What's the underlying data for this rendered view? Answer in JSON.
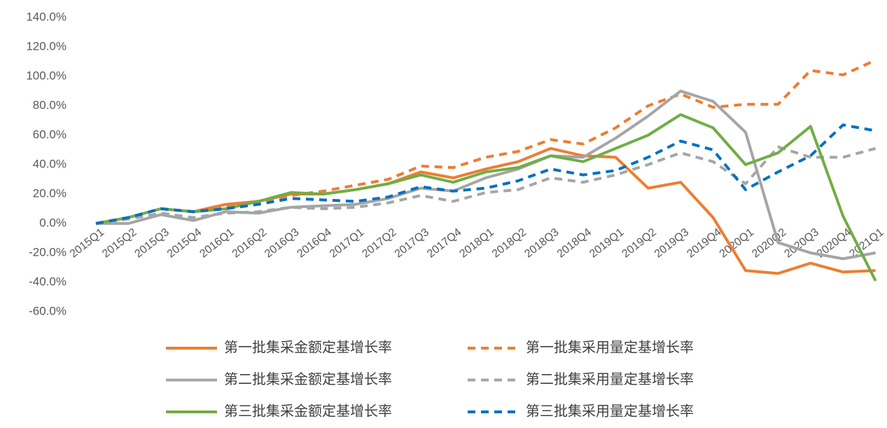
{
  "chart_data": {
    "type": "line",
    "categories": [
      "2015Q1",
      "2015Q2",
      "2015Q3",
      "2015Q4",
      "2016Q1",
      "2016Q2",
      "2016Q3",
      "2016Q4",
      "2017Q1",
      "2017Q2",
      "2017Q3",
      "2017Q4",
      "2018Q1",
      "2018Q2",
      "2018Q3",
      "2018Q4",
      "2019Q1",
      "2019Q2",
      "2019Q3",
      "2019Q4",
      "2020Q1",
      "2020Q2",
      "2020Q3",
      "2020Q4",
      "2021Q1"
    ],
    "ylim": [
      -60,
      140
    ],
    "yticks": [
      {
        "value": -60,
        "label": "-60.0%"
      },
      {
        "value": -40,
        "label": "-40.0%"
      },
      {
        "value": -20,
        "label": "-20.0%"
      },
      {
        "value": 0,
        "label": "0.0%"
      },
      {
        "value": 20,
        "label": "20.0%"
      },
      {
        "value": 40,
        "label": "40.0%"
      },
      {
        "value": 60,
        "label": "60.0%"
      },
      {
        "value": 80,
        "label": "80.0%"
      },
      {
        "value": 100,
        "label": "100.0%"
      },
      {
        "value": 120,
        "label": "120.0%"
      },
      {
        "value": 140,
        "label": "140.0%"
      }
    ],
    "grid": false,
    "legend": "bottom",
    "series": [
      {
        "name": "第一批集采金额定基增长率",
        "color": "#ed7d31",
        "line_style": "solid",
        "values": [
          0,
          4,
          10,
          8,
          13,
          15,
          20,
          20,
          23,
          27,
          35,
          31,
          37,
          42,
          51,
          46,
          45,
          24,
          28,
          4,
          -32,
          -34,
          -27,
          -33,
          -32
        ]
      },
      {
        "name": "第一批集采用量定基增长率",
        "color": "#ed7d31",
        "line_style": "dashed",
        "values": [
          0,
          4,
          10,
          8,
          12,
          15,
          19,
          22,
          26,
          30,
          39,
          38,
          45,
          49,
          57,
          54,
          65,
          80,
          88,
          79,
          81,
          81,
          104,
          101,
          111
        ]
      },
      {
        "name": "第二批集采金额定基增长率",
        "color": "#a5a5a5",
        "line_style": "solid",
        "values": [
          0,
          0,
          6,
          2,
          8,
          7,
          11,
          12,
          13,
          17,
          24,
          22,
          31,
          37,
          46,
          45,
          58,
          73,
          90,
          83,
          62,
          -13,
          -20,
          -24,
          -20
        ]
      },
      {
        "name": "第二批集采用量定基增长率",
        "color": "#a5a5a5",
        "line_style": "dashed",
        "values": [
          0,
          3,
          7,
          4,
          7,
          8,
          11,
          10,
          11,
          14,
          19,
          15,
          21,
          23,
          31,
          28,
          33,
          40,
          48,
          42,
          27,
          52,
          45,
          45,
          51
        ]
      },
      {
        "name": "第三批集采金额定基增长率",
        "color": "#70ad47",
        "line_style": "solid",
        "values": [
          0,
          4,
          10,
          8,
          10,
          15,
          21,
          20,
          23,
          27,
          33,
          28,
          35,
          38,
          46,
          42,
          51,
          60,
          74,
          65,
          40,
          48,
          66,
          5,
          -39
        ]
      },
      {
        "name": "第三批集采用量定基增长率",
        "color": "#0070c0",
        "line_style": "dashed",
        "values": [
          0,
          4,
          10,
          8,
          10,
          13,
          17,
          16,
          15,
          18,
          25,
          22,
          24,
          29,
          37,
          33,
          36,
          45,
          56,
          50,
          23,
          35,
          46,
          67,
          63
        ]
      }
    ]
  }
}
